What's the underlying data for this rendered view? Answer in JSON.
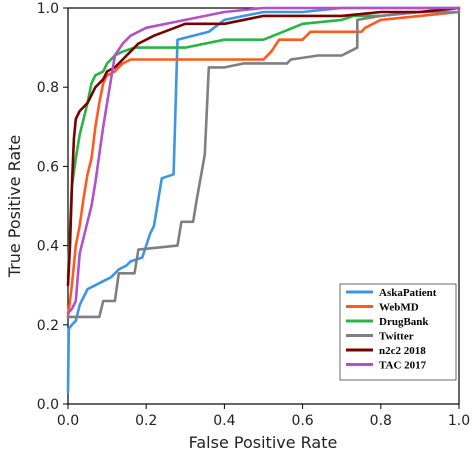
{
  "chart_data": {
    "type": "line",
    "xlabel": "False Positive Rate",
    "ylabel": "True Positive Rate",
    "xlim": [
      0.0,
      1.0
    ],
    "ylim": [
      0.0,
      1.0
    ],
    "xticks": [
      "0.0",
      "0.2",
      "0.4",
      "0.6",
      "0.8",
      "1.0"
    ],
    "yticks": [
      "0.0",
      "0.2",
      "0.4",
      "0.6",
      "0.8",
      "1.0"
    ],
    "grid": false,
    "legend_position": "bottom-right",
    "series": [
      {
        "name": "AskaPatient",
        "color": "#3c96e6",
        "points": [
          [
            0,
            0.03
          ],
          [
            0.002,
            0.19
          ],
          [
            0.01,
            0.2
          ],
          [
            0.02,
            0.21
          ],
          [
            0.03,
            0.25
          ],
          [
            0.05,
            0.29
          ],
          [
            0.07,
            0.3
          ],
          [
            0.09,
            0.31
          ],
          [
            0.11,
            0.32
          ],
          [
            0.13,
            0.34
          ],
          [
            0.15,
            0.35
          ],
          [
            0.16,
            0.36
          ],
          [
            0.19,
            0.37
          ],
          [
            0.2,
            0.4
          ],
          [
            0.21,
            0.43
          ],
          [
            0.22,
            0.45
          ],
          [
            0.23,
            0.51
          ],
          [
            0.24,
            0.57
          ],
          [
            0.27,
            0.58
          ],
          [
            0.28,
            0.92
          ],
          [
            0.32,
            0.93
          ],
          [
            0.36,
            0.94
          ],
          [
            0.4,
            0.97
          ],
          [
            0.45,
            0.98
          ],
          [
            0.5,
            0.99
          ],
          [
            0.6,
            0.99
          ],
          [
            0.7,
            1.0
          ],
          [
            1.0,
            1.0
          ]
        ]
      },
      {
        "name": "WebMD",
        "color": "#ff5a1e",
        "points": [
          [
            0,
            0.22
          ],
          [
            0.01,
            0.3
          ],
          [
            0.02,
            0.4
          ],
          [
            0.03,
            0.45
          ],
          [
            0.04,
            0.52
          ],
          [
            0.05,
            0.58
          ],
          [
            0.06,
            0.62
          ],
          [
            0.07,
            0.7
          ],
          [
            0.08,
            0.76
          ],
          [
            0.09,
            0.81
          ],
          [
            0.1,
            0.83
          ],
          [
            0.12,
            0.84
          ],
          [
            0.14,
            0.86
          ],
          [
            0.16,
            0.87
          ],
          [
            0.3,
            0.87
          ],
          [
            0.5,
            0.87
          ],
          [
            0.52,
            0.89
          ],
          [
            0.54,
            0.92
          ],
          [
            0.6,
            0.92
          ],
          [
            0.62,
            0.94
          ],
          [
            0.75,
            0.94
          ],
          [
            0.76,
            0.95
          ],
          [
            0.8,
            0.97
          ],
          [
            0.9,
            0.98
          ],
          [
            1.0,
            0.99
          ]
        ]
      },
      {
        "name": "DrugBank",
        "color": "#28b446",
        "points": [
          [
            0,
            0.32
          ],
          [
            0.01,
            0.55
          ],
          [
            0.02,
            0.62
          ],
          [
            0.03,
            0.68
          ],
          [
            0.04,
            0.72
          ],
          [
            0.05,
            0.76
          ],
          [
            0.06,
            0.81
          ],
          [
            0.07,
            0.83
          ],
          [
            0.09,
            0.84
          ],
          [
            0.1,
            0.86
          ],
          [
            0.12,
            0.88
          ],
          [
            0.14,
            0.89
          ],
          [
            0.17,
            0.9
          ],
          [
            0.3,
            0.9
          ],
          [
            0.4,
            0.92
          ],
          [
            0.5,
            0.92
          ],
          [
            0.55,
            0.94
          ],
          [
            0.6,
            0.96
          ],
          [
            0.7,
            0.97
          ],
          [
            0.73,
            0.98
          ],
          [
            0.8,
            0.98
          ],
          [
            0.9,
            0.99
          ],
          [
            1.0,
            1.0
          ]
        ]
      },
      {
        "name": "Twitter",
        "color": "#7f7f7f",
        "points": [
          [
            0,
            0.22
          ],
          [
            0.04,
            0.22
          ],
          [
            0.08,
            0.22
          ],
          [
            0.09,
            0.26
          ],
          [
            0.12,
            0.26
          ],
          [
            0.13,
            0.33
          ],
          [
            0.17,
            0.33
          ],
          [
            0.18,
            0.39
          ],
          [
            0.28,
            0.4
          ],
          [
            0.29,
            0.46
          ],
          [
            0.32,
            0.46
          ],
          [
            0.33,
            0.52
          ],
          [
            0.35,
            0.63
          ],
          [
            0.36,
            0.85
          ],
          [
            0.4,
            0.85
          ],
          [
            0.45,
            0.86
          ],
          [
            0.56,
            0.86
          ],
          [
            0.57,
            0.87
          ],
          [
            0.64,
            0.88
          ],
          [
            0.7,
            0.88
          ],
          [
            0.72,
            0.89
          ],
          [
            0.74,
            0.9
          ],
          [
            0.74,
            0.97
          ],
          [
            0.8,
            0.98
          ],
          [
            0.9,
            0.99
          ],
          [
            1.0,
            0.99
          ]
        ]
      },
      {
        "name": "n2c2 2018",
        "color": "#780000",
        "points": [
          [
            0,
            0.3
          ],
          [
            0.005,
            0.4
          ],
          [
            0.01,
            0.55
          ],
          [
            0.015,
            0.67
          ],
          [
            0.02,
            0.72
          ],
          [
            0.03,
            0.74
          ],
          [
            0.05,
            0.76
          ],
          [
            0.07,
            0.8
          ],
          [
            0.09,
            0.82
          ],
          [
            0.1,
            0.84
          ],
          [
            0.12,
            0.85
          ],
          [
            0.14,
            0.87
          ],
          [
            0.18,
            0.91
          ],
          [
            0.22,
            0.93
          ],
          [
            0.3,
            0.96
          ],
          [
            0.4,
            0.96
          ],
          [
            0.5,
            0.98
          ],
          [
            0.6,
            0.98
          ],
          [
            0.7,
            0.98
          ],
          [
            0.8,
            0.99
          ],
          [
            0.9,
            0.99
          ],
          [
            1.0,
            1.0
          ]
        ]
      },
      {
        "name": "TAC 2017",
        "color": "#b450c8",
        "points": [
          [
            0,
            0.23
          ],
          [
            0.01,
            0.24
          ],
          [
            0.02,
            0.26
          ],
          [
            0.03,
            0.38
          ],
          [
            0.05,
            0.46
          ],
          [
            0.06,
            0.5
          ],
          [
            0.07,
            0.56
          ],
          [
            0.08,
            0.63
          ],
          [
            0.09,
            0.7
          ],
          [
            0.1,
            0.76
          ],
          [
            0.11,
            0.82
          ],
          [
            0.12,
            0.88
          ],
          [
            0.14,
            0.91
          ],
          [
            0.16,
            0.93
          ],
          [
            0.2,
            0.95
          ],
          [
            0.3,
            0.97
          ],
          [
            0.4,
            0.99
          ],
          [
            0.5,
            1.0
          ],
          [
            0.6,
            1.0
          ],
          [
            0.7,
            1.0
          ],
          [
            1.0,
            1.0
          ]
        ]
      }
    ]
  }
}
